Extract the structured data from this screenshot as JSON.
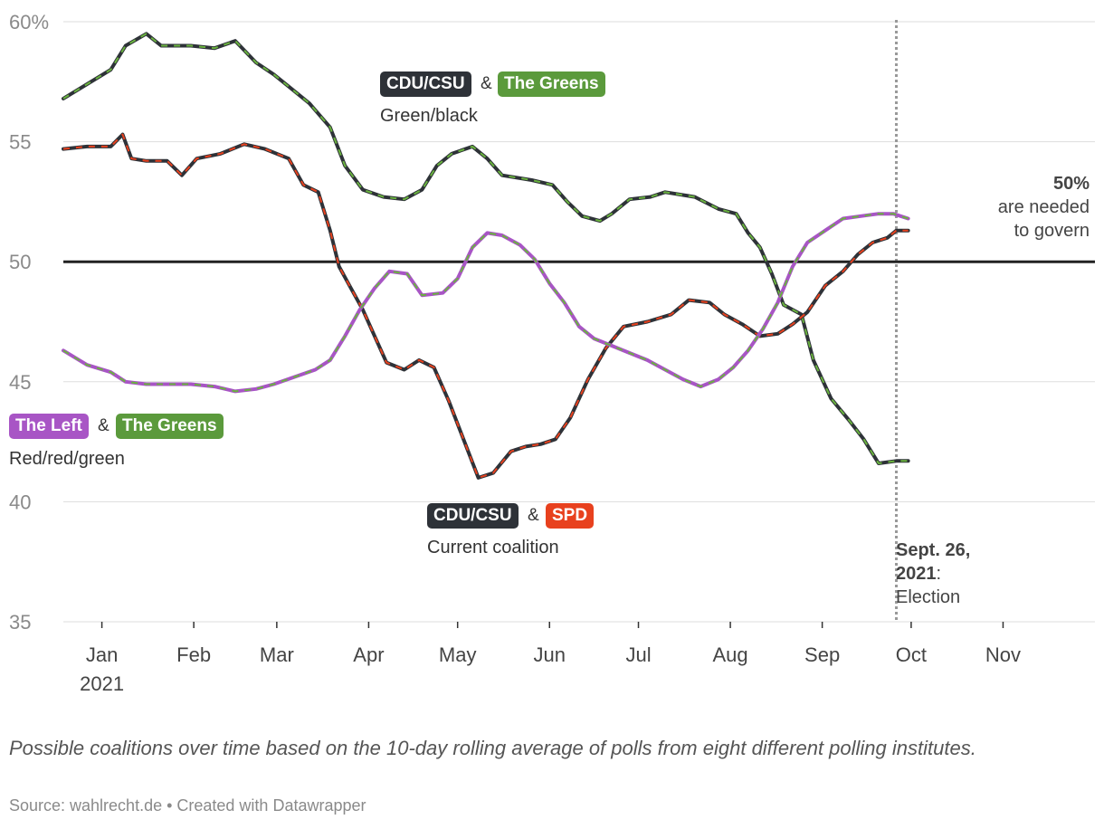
{
  "chart_data": {
    "type": "line",
    "y_axis": {
      "min": 35,
      "max": 60,
      "ticks": [
        35,
        40,
        45,
        50,
        55,
        60
      ],
      "tick_labels": [
        "35",
        "40",
        "45",
        "50",
        "55",
        "60%"
      ]
    },
    "x_axis": {
      "ticks": [
        "Jan",
        "Feb",
        "Mar",
        "Apr",
        "May",
        "Jun",
        "Jul",
        "Aug",
        "Sep",
        "Oct",
        "Nov"
      ],
      "year_label": "2021",
      "month_starts": [
        0,
        31,
        59,
        90,
        120,
        151,
        181,
        212,
        243,
        273,
        304
      ],
      "range_days": [
        -13,
        335
      ]
    },
    "threshold": {
      "value": 50,
      "label_bold": "50%",
      "label_line1": "are needed",
      "label_line2": "to govern"
    },
    "event": {
      "day": 268,
      "label_bold_1": "Sept. 26,",
      "label_bold_2": "2021",
      "label_colon": ":",
      "label_rest": "Election"
    },
    "series": [
      {
        "id": "cdu_greens",
        "base_color": "#2e3238",
        "dash_color": "#6ab33f",
        "pill_1": "CDU/CSU",
        "amp": "&",
        "pill_2": "The Greens",
        "sub": "Green/black",
        "points": [
          [
            -13,
            56.8
          ],
          [
            -5,
            57.4
          ],
          [
            3,
            58.0
          ],
          [
            8,
            59.0
          ],
          [
            15,
            59.5
          ],
          [
            20,
            59.0
          ],
          [
            30,
            59.0
          ],
          [
            38,
            58.9
          ],
          [
            45,
            59.2
          ],
          [
            52,
            58.3
          ],
          [
            58,
            57.8
          ],
          [
            63,
            57.3
          ],
          [
            70,
            56.6
          ],
          [
            77,
            55.6
          ],
          [
            82,
            54.0
          ],
          [
            88,
            53.0
          ],
          [
            95,
            52.7
          ],
          [
            102,
            52.6
          ],
          [
            108,
            53.0
          ],
          [
            113,
            54.0
          ],
          [
            118,
            54.5
          ],
          [
            125,
            54.8
          ],
          [
            130,
            54.3
          ],
          [
            135,
            53.6
          ],
          [
            145,
            53.4
          ],
          [
            152,
            53.2
          ],
          [
            157,
            52.5
          ],
          [
            162,
            51.9
          ],
          [
            168,
            51.7
          ],
          [
            172,
            52.0
          ],
          [
            178,
            52.6
          ],
          [
            185,
            52.7
          ],
          [
            190,
            52.9
          ],
          [
            200,
            52.7
          ],
          [
            208,
            52.2
          ],
          [
            214,
            52.0
          ],
          [
            218,
            51.2
          ],
          [
            222,
            50.6
          ],
          [
            226,
            49.5
          ],
          [
            230,
            48.2
          ],
          [
            236,
            47.8
          ],
          [
            240,
            45.9
          ],
          [
            246,
            44.3
          ],
          [
            252,
            43.4
          ],
          [
            257,
            42.6
          ],
          [
            262,
            41.6
          ],
          [
            268,
            41.7
          ],
          [
            272,
            41.7
          ]
        ]
      },
      {
        "id": "cdu_spd",
        "base_color": "#2e3238",
        "dash_color": "#e8411e",
        "pill_1": "CDU/CSU",
        "amp": "&",
        "pill_2": "SPD",
        "sub": "Current coalition",
        "points": [
          [
            -13,
            54.7
          ],
          [
            -5,
            54.8
          ],
          [
            3,
            54.8
          ],
          [
            7,
            55.3
          ],
          [
            10,
            54.3
          ],
          [
            15,
            54.2
          ],
          [
            22,
            54.2
          ],
          [
            27,
            53.6
          ],
          [
            32,
            54.3
          ],
          [
            40,
            54.5
          ],
          [
            48,
            54.9
          ],
          [
            55,
            54.7
          ],
          [
            63,
            54.3
          ],
          [
            68,
            53.2
          ],
          [
            73,
            52.9
          ],
          [
            77,
            51.3
          ],
          [
            80,
            49.8
          ],
          [
            84,
            48.9
          ],
          [
            88,
            48.0
          ],
          [
            92,
            46.9
          ],
          [
            96,
            45.8
          ],
          [
            102,
            45.5
          ],
          [
            107,
            45.9
          ],
          [
            112,
            45.6
          ],
          [
            117,
            44.2
          ],
          [
            122,
            42.6
          ],
          [
            127,
            41.0
          ],
          [
            132,
            41.2
          ],
          [
            138,
            42.1
          ],
          [
            143,
            42.3
          ],
          [
            148,
            42.4
          ],
          [
            153,
            42.6
          ],
          [
            158,
            43.5
          ],
          [
            164,
            45.1
          ],
          [
            170,
            46.4
          ],
          [
            176,
            47.3
          ],
          [
            184,
            47.5
          ],
          [
            192,
            47.8
          ],
          [
            198,
            48.4
          ],
          [
            205,
            48.3
          ],
          [
            210,
            47.8
          ],
          [
            216,
            47.4
          ],
          [
            222,
            46.9
          ],
          [
            228,
            47.0
          ],
          [
            233,
            47.4
          ],
          [
            238,
            47.9
          ],
          [
            244,
            49.0
          ],
          [
            250,
            49.6
          ],
          [
            255,
            50.3
          ],
          [
            260,
            50.8
          ],
          [
            265,
            51.0
          ],
          [
            268,
            51.3
          ],
          [
            272,
            51.3
          ]
        ]
      },
      {
        "id": "left_greens",
        "base_color": "#a855c5",
        "dash_color": "#6ab33f",
        "pill_1": "The Left",
        "amp": "&",
        "pill_2": "The Greens",
        "sub": "Red/red/green",
        "points": [
          [
            -13,
            46.3
          ],
          [
            -5,
            45.7
          ],
          [
            3,
            45.4
          ],
          [
            8,
            45.0
          ],
          [
            15,
            44.9
          ],
          [
            22,
            44.9
          ],
          [
            30,
            44.9
          ],
          [
            38,
            44.8
          ],
          [
            45,
            44.6
          ],
          [
            52,
            44.7
          ],
          [
            58,
            44.9
          ],
          [
            65,
            45.2
          ],
          [
            72,
            45.5
          ],
          [
            77,
            45.9
          ],
          [
            82,
            46.9
          ],
          [
            87,
            48.0
          ],
          [
            92,
            48.9
          ],
          [
            97,
            49.6
          ],
          [
            103,
            49.5
          ],
          [
            108,
            48.6
          ],
          [
            115,
            48.7
          ],
          [
            120,
            49.3
          ],
          [
            125,
            50.6
          ],
          [
            130,
            51.2
          ],
          [
            135,
            51.1
          ],
          [
            141,
            50.7
          ],
          [
            146,
            50.1
          ],
          [
            151,
            49.1
          ],
          [
            156,
            48.3
          ],
          [
            161,
            47.3
          ],
          [
            166,
            46.8
          ],
          [
            172,
            46.5
          ],
          [
            178,
            46.2
          ],
          [
            184,
            45.9
          ],
          [
            190,
            45.5
          ],
          [
            196,
            45.1
          ],
          [
            202,
            44.8
          ],
          [
            208,
            45.1
          ],
          [
            213,
            45.6
          ],
          [
            218,
            46.3
          ],
          [
            223,
            47.2
          ],
          [
            228,
            48.3
          ],
          [
            233,
            49.8
          ],
          [
            238,
            50.8
          ],
          [
            244,
            51.3
          ],
          [
            250,
            51.8
          ],
          [
            256,
            51.9
          ],
          [
            262,
            52.0
          ],
          [
            267,
            52.0
          ],
          [
            272,
            51.8
          ]
        ]
      }
    ],
    "caption": "Possible coalitions over time based on the 10-day rolling average of polls from eight different polling institutes.",
    "source": "Source: wahlrecht.de • Created with Datawrapper"
  },
  "colors": {
    "cdu": "#2e3238",
    "greens": "#5b9a3c",
    "spd": "#e8411e",
    "left": "#a855c5"
  }
}
